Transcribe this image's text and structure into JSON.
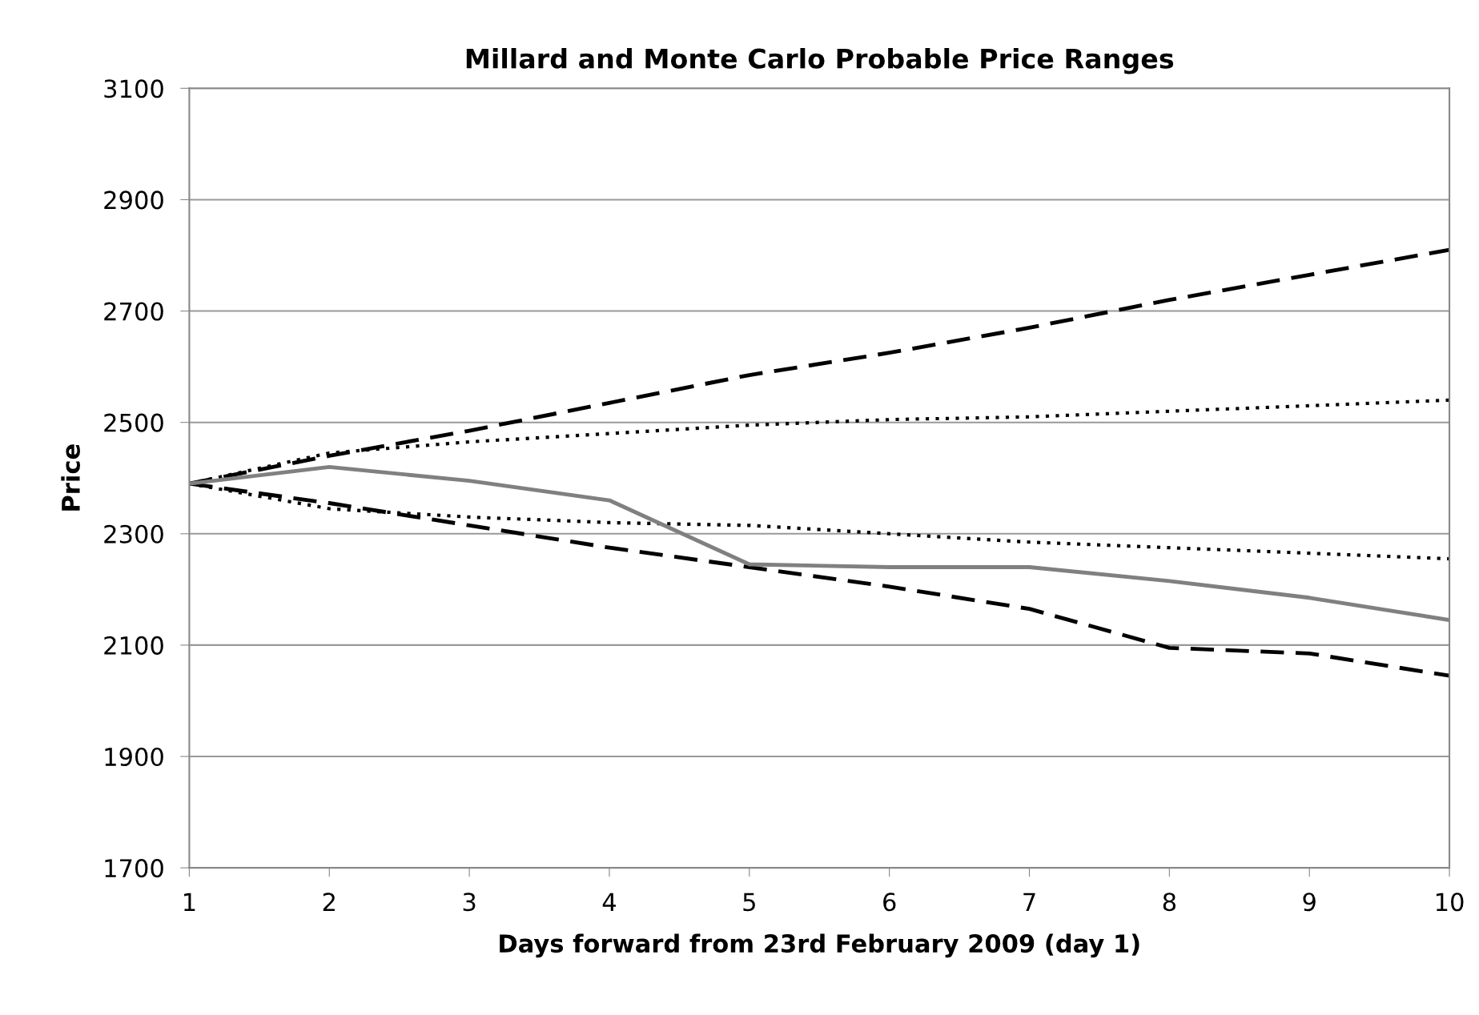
{
  "chart_data": {
    "type": "line",
    "title": "Millard and Monte Carlo Probable Price Ranges",
    "xlabel": "Days forward from 23rd February 2009 (day 1)",
    "ylabel": "Price",
    "x": [
      1,
      2,
      3,
      4,
      5,
      6,
      7,
      8,
      9,
      10
    ],
    "series": [
      {
        "color": "#000000",
        "line_style": "dashed",
        "values": [
          2390,
          2440,
          2485,
          2535,
          2585,
          2625,
          2670,
          2720,
          2765,
          2810
        ]
      },
      {
        "color": "#000000",
        "line_style": "dotted",
        "values": [
          2390,
          2445,
          2465,
          2480,
          2495,
          2505,
          2510,
          2520,
          2530,
          2540
        ]
      },
      {
        "color": "#000000",
        "line_style": "dotted",
        "values": [
          2390,
          2345,
          2330,
          2320,
          2315,
          2300,
          2285,
          2275,
          2265,
          2255
        ]
      },
      {
        "color": "#000000",
        "line_style": "dashed",
        "values": [
          2390,
          2355,
          2315,
          2275,
          2240,
          2205,
          2165,
          2095,
          2085,
          2045
        ]
      },
      {
        "color": "#808080",
        "line_style": "solid",
        "values": [
          2390,
          2420,
          2395,
          2360,
          2245,
          2240,
          2240,
          2215,
          2185,
          2145
        ]
      }
    ],
    "xlim": [
      1,
      10
    ],
    "xticks": [
      1,
      2,
      3,
      4,
      5,
      6,
      7,
      8,
      9,
      10
    ],
    "ylim": [
      1700,
      3100
    ],
    "yticks": [
      1700,
      1900,
      2100,
      2300,
      2500,
      2700,
      2900,
      3100
    ],
    "grid": "y",
    "legend": false
  }
}
